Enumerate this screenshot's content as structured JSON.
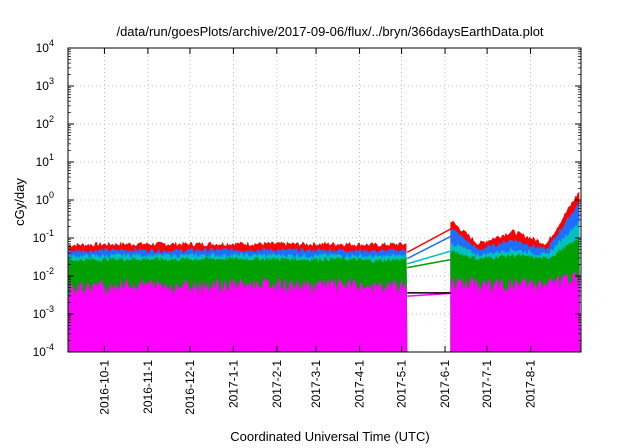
{
  "chart_data": {
    "type": "line",
    "title": "/data/run/goesPlots/archive/2017-09-06/flux/../bryn/366daysEarthData.plot",
    "xlabel": "Coordinated Universal Time (UTC)",
    "ylabel": "cGy/day",
    "yscale": "log",
    "ylim": [
      0.0001,
      10000
    ],
    "xlim": [
      "2016-09-05",
      "2017-09-06"
    ],
    "grid": true,
    "legend": "none",
    "y_ticks": [
      {
        "base": "10",
        "exp": "4"
      },
      {
        "base": "10",
        "exp": "3"
      },
      {
        "base": "10",
        "exp": "2"
      },
      {
        "base": "10",
        "exp": "1"
      },
      {
        "base": "10",
        "exp": "0"
      },
      {
        "base": "10",
        "exp": "-1"
      },
      {
        "base": "10",
        "exp": "-2"
      },
      {
        "base": "10",
        "exp": "-3"
      },
      {
        "base": "10",
        "exp": "-4"
      }
    ],
    "x_ticks": [
      "2016-10-1",
      "2016-11-1",
      "2016-12-1",
      "2017-1-1",
      "2017-2-1",
      "2017-3-1",
      "2017-4-1",
      "2017-5-1",
      "2017-6-1",
      "2017-7-1",
      "2017-8-1"
    ],
    "data_gap": [
      "2017-05-05",
      "2017-06-05"
    ],
    "series": [
      {
        "color": "#ff0000",
        "values": [
          0.065,
          0.068,
          0.07,
          0.069,
          0.07,
          0.071,
          0.07,
          0.069,
          0.07,
          0.066,
          0.07,
          0.4,
          0.07,
          0.15,
          0.07,
          2.0
        ]
      },
      {
        "color": "#1f6fff",
        "values": [
          0.045,
          0.047,
          0.048,
          0.046,
          0.048,
          0.049,
          0.048,
          0.047,
          0.048,
          0.045,
          0.048,
          0.25,
          0.048,
          0.09,
          0.048,
          1.0
        ]
      },
      {
        "color": "#00c0c0",
        "values": [
          0.033,
          0.034,
          0.035,
          0.034,
          0.035,
          0.035,
          0.035,
          0.034,
          0.035,
          0.032,
          0.035,
          0.09,
          0.035,
          0.05,
          0.035,
          0.3
        ]
      },
      {
        "color": "#00a000",
        "values": [
          0.026,
          0.027,
          0.028,
          0.027,
          0.028,
          0.028,
          0.028,
          0.027,
          0.028,
          0.025,
          0.028,
          0.05,
          0.028,
          0.035,
          0.028,
          0.1
        ]
      },
      {
        "color": "#ff00ff",
        "values": [
          0.004,
          0.0045,
          0.005,
          0.0045,
          0.005,
          0.005,
          0.005,
          0.0045,
          0.005,
          0.004,
          0.005,
          0.006,
          0.005,
          0.005,
          0.005,
          0.008
        ]
      },
      {
        "color": "#000000",
        "values": [
          0.006,
          0.006,
          0.006,
          0.006,
          0.006,
          0.006,
          0.006,
          0.006,
          0.006,
          0.006,
          0.006,
          0.006,
          0.006,
          0.006,
          0.006,
          0.006
        ]
      }
    ]
  }
}
